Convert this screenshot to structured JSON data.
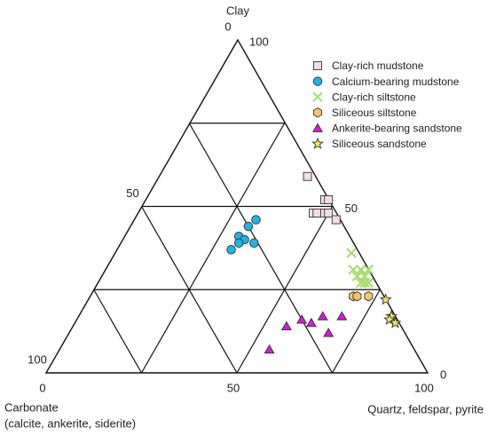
{
  "chart_data": {
    "type": "ternary",
    "axes": {
      "clay": {
        "label": "Clay",
        "ticks": [
          0,
          50,
          100
        ],
        "grid": [
          25,
          50,
          75
        ]
      },
      "carbonate": {
        "label": "Carbonate",
        "note": "(calcite, ankerite, siderite)",
        "ticks": [
          0,
          50,
          100
        ],
        "grid": [
          25,
          50,
          75
        ]
      },
      "quartz": {
        "label": "Quartz, feldspar, pyrite",
        "ticks": [
          0,
          50,
          100
        ],
        "grid": [
          25,
          50,
          75
        ]
      }
    },
    "series": [
      {
        "name": "Clay-rich mudstone",
        "marker": "square",
        "color": "#f0e0e4",
        "clay": [
          59,
          52,
          52,
          48,
          48,
          48,
          48,
          46
        ],
        "quartz": [
          39,
          47,
          48,
          46,
          47,
          49,
          50,
          53
        ],
        "carbonate": [
          2,
          1,
          0,
          6,
          5,
          3,
          2,
          1
        ]
      },
      {
        "name": "Calcium-bearing mudstone",
        "marker": "circle",
        "color": "#1fb3e8",
        "clay": [
          46,
          44,
          41,
          40,
          39,
          39,
          37
        ],
        "quartz": [
          32,
          31,
          30,
          32,
          35,
          31,
          30
        ],
        "carbonate": [
          22,
          25,
          29,
          28,
          26,
          30,
          33
        ]
      },
      {
        "name": "Clay-rich siltstone",
        "marker": "x",
        "color": "#a6dd6b",
        "clay": [
          36,
          31,
          31,
          31,
          29,
          29,
          27,
          27,
          27
        ],
        "quartz": [
          62,
          65,
          67,
          69,
          67,
          69,
          69,
          70,
          71
        ],
        "carbonate": [
          2,
          4,
          2,
          0,
          4,
          2,
          4,
          3,
          2
        ]
      },
      {
        "name": "Siliceous siltstone",
        "marker": "hexagon",
        "color": "#f7c66b",
        "clay": [
          23,
          23,
          23
        ],
        "quartz": [
          69,
          70,
          73
        ],
        "carbonate": [
          8,
          7,
          4
        ]
      },
      {
        "name": "Ankerite-bearing sandstone",
        "marker": "triangle",
        "color": "#d61ad6",
        "clay": [
          14,
          16,
          15,
          17,
          17,
          12,
          7
        ],
        "quartz": [
          56,
          59,
          62,
          64,
          69,
          68,
          55
        ],
        "carbonate": [
          30,
          25,
          23,
          19,
          14,
          20,
          38
        ]
      },
      {
        "name": "Siliceous sandstone",
        "marker": "star",
        "color": "#f1e85a",
        "clay": [
          22,
          17,
          16,
          15
        ],
        "quartz": [
          78,
          82,
          82,
          84
        ],
        "carbonate": [
          0,
          1,
          2,
          1
        ]
      }
    ]
  }
}
